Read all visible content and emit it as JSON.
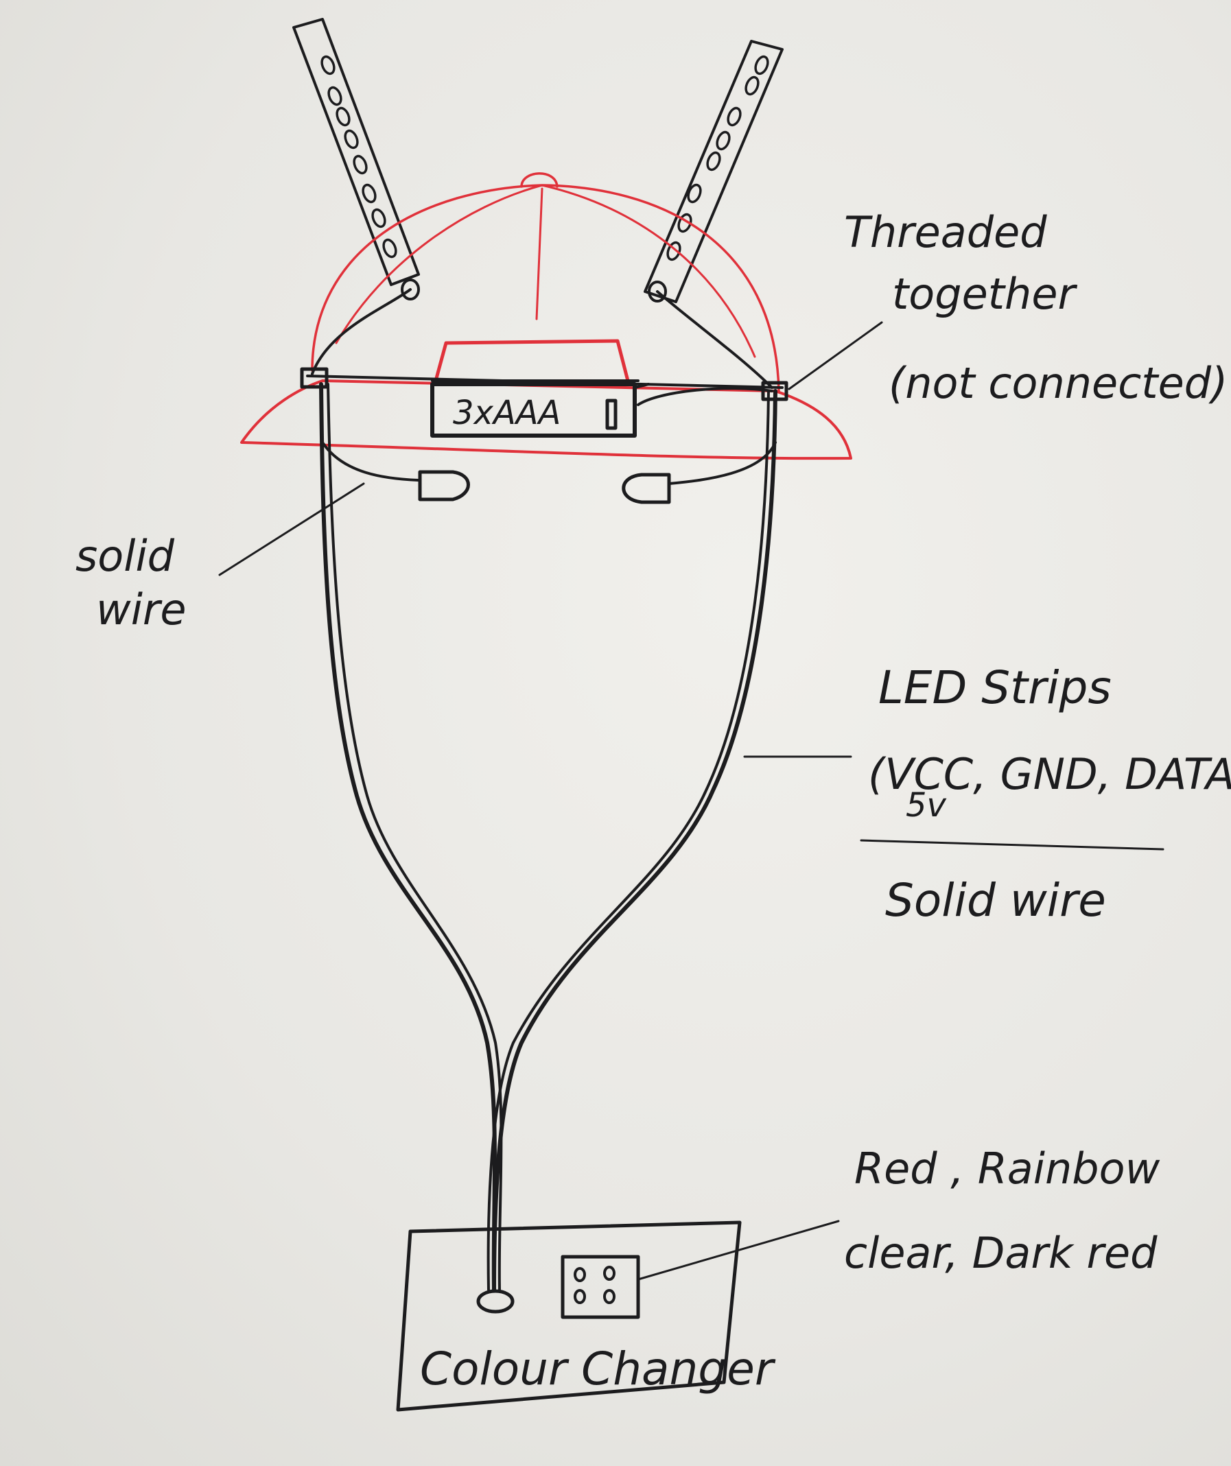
{
  "colors": {
    "paper": "#e9e8e4",
    "ink": "#1c1c1e",
    "hat_outline": "#e0313a"
  },
  "labels": {
    "battery_pack": "3xAAA",
    "threaded_together": [
      "Threaded",
      "together",
      "(not connected)"
    ],
    "solid_wire_left": [
      "solid",
      "wire"
    ],
    "led_strips": [
      "LED Strips",
      "(VCC, GND, DATA)",
      "5v"
    ],
    "solid_wire_right": "Solid wire",
    "colour_options": [
      "Red , Rainbow",
      "clear, Dark red"
    ],
    "colour_changer": "Colour Changer"
  }
}
